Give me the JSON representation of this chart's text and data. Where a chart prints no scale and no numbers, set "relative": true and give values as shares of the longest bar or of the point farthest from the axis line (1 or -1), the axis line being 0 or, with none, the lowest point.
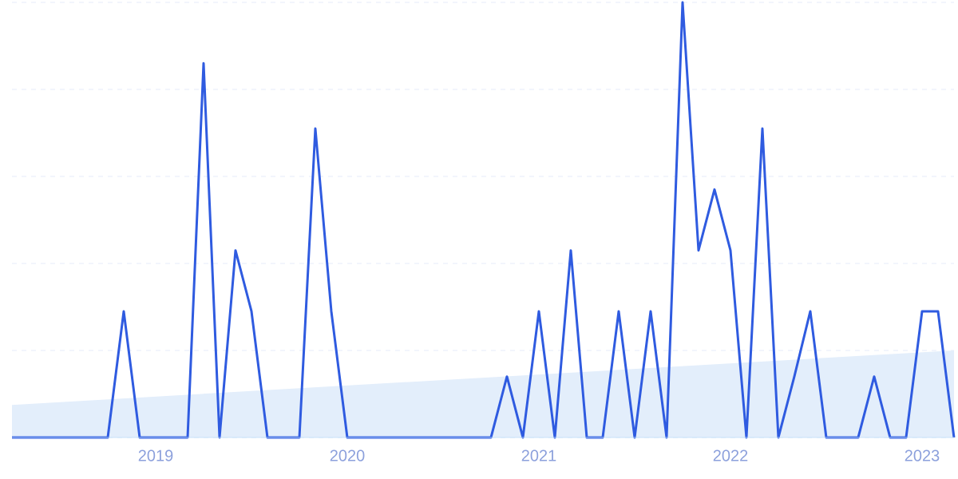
{
  "chart_data": {
    "type": "line",
    "relative": true,
    "grid": "y",
    "line_style": "solid",
    "x": [
      "2018-04",
      "2018-05",
      "2018-06",
      "2018-07",
      "2018-08",
      "2018-09",
      "2018-10",
      "2018-11",
      "2018-12",
      "2019-01",
      "2019-02",
      "2019-03",
      "2019-04",
      "2019-05",
      "2019-06",
      "2019-07",
      "2019-08",
      "2019-09",
      "2019-10",
      "2019-11",
      "2019-12",
      "2020-01",
      "2020-02",
      "2020-03",
      "2020-04",
      "2020-05",
      "2020-06",
      "2020-07",
      "2020-08",
      "2020-09",
      "2020-10",
      "2020-11",
      "2020-12",
      "2021-01",
      "2021-02",
      "2021-03",
      "2021-04",
      "2021-05",
      "2021-06",
      "2021-07",
      "2021-08",
      "2021-09",
      "2021-10",
      "2021-11",
      "2021-12",
      "2022-01",
      "2022-02",
      "2022-03",
      "2022-04",
      "2022-05",
      "2022-06",
      "2022-07",
      "2022-08",
      "2022-09",
      "2022-10",
      "2022-11",
      "2022-12",
      "2023-01",
      "2023-02",
      "2023-03"
    ],
    "xlim": [
      "2018-04",
      "2023-03"
    ],
    "xticks": [
      {
        "value": "2019-01",
        "label": "2019"
      },
      {
        "value": "2020-01",
        "label": "2020"
      },
      {
        "value": "2021-01",
        "label": "2021"
      },
      {
        "value": "2022-01",
        "label": "2022"
      },
      {
        "value": "2023-01",
        "label": "2023"
      }
    ],
    "series": [
      {
        "type": "area",
        "color": "#e3eefb",
        "x": [
          "2018-04",
          "2023-03"
        ],
        "values": [
          0.075,
          0.2
        ]
      },
      {
        "color": "#2f5be0",
        "values": [
          0,
          0,
          0,
          0,
          0,
          0,
          0,
          0.29,
          0,
          0,
          0,
          0,
          0.86,
          0,
          0.43,
          0.29,
          0,
          0,
          0,
          0.71,
          0.29,
          0,
          0,
          0,
          0,
          0,
          0,
          0,
          0,
          0,
          0,
          0.14,
          0,
          0.29,
          0,
          0.43,
          0,
          0,
          0.29,
          0,
          0.29,
          0,
          1,
          0.43,
          0.57,
          0.43,
          0,
          0.71,
          0,
          0.14,
          0.29,
          0,
          0,
          0,
          0.14,
          0,
          0,
          0.29,
          0.29,
          0
        ]
      }
    ]
  }
}
